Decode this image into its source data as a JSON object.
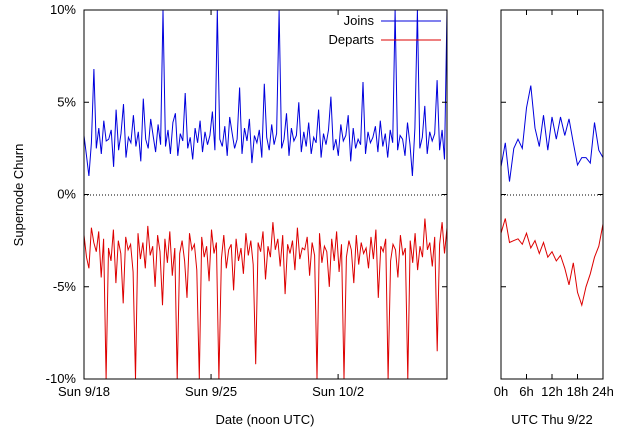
{
  "chart_data": [
    {
      "type": "line",
      "xlabel": "Date (noon UTC)",
      "ylabel": "Supernode Churn",
      "ylim": [
        -10,
        10
      ],
      "xlim": [
        0,
        20
      ],
      "x_unit": "days after Sun 9/18 noon UTC",
      "yticks": [
        {
          "value": 10,
          "label": "10%"
        },
        {
          "value": 5,
          "label": "5%"
        },
        {
          "value": 0,
          "label": "0%"
        },
        {
          "value": -5,
          "label": "-5%"
        },
        {
          "value": -10,
          "label": "-10%"
        }
      ],
      "xticks": [
        {
          "value": 0,
          "label": "Sun 9/18"
        },
        {
          "value": 7,
          "label": "Sun 9/25"
        },
        {
          "value": 14,
          "label": "Sun 10/2"
        }
      ],
      "legend_position": "top-right",
      "zero_line": "dotted",
      "series": [
        {
          "name": "Joins",
          "color": "#0000dd",
          "values": [
            3.2,
            2.1,
            1.0,
            2.8,
            6.8,
            2.5,
            3.6,
            2.2,
            4.0,
            2.9,
            3.0,
            3.5,
            1.5,
            4.6,
            2.4,
            3.3,
            4.9,
            2.0,
            3.1,
            2.8,
            4.3,
            2.6,
            3.4,
            1.8,
            5.2,
            3.0,
            2.5,
            4.1,
            3.2,
            2.3,
            3.8,
            2.7,
            10.0,
            2.6,
            3.5,
            2.2,
            3.9,
            4.4,
            2.1,
            3.3,
            2.9,
            5.5,
            2.5,
            3.1,
            1.9,
            3.6,
            2.8,
            4.0,
            2.3,
            3.4,
            2.7,
            3.2,
            4.5,
            2.4,
            10.0,
            3.0,
            2.6,
            3.7,
            2.1,
            4.2,
            3.3,
            2.5,
            3.0,
            5.8,
            2.2,
            3.6,
            2.9,
            4.1,
            1.7,
            3.2,
            2.8,
            3.5,
            2.0,
            6.0,
            3.1,
            2.4,
            3.8,
            2.7,
            3.3,
            10.0,
            2.5,
            3.0,
            4.4,
            2.1,
            3.6,
            2.9,
            3.2,
            5.0,
            2.3,
            3.4,
            2.6,
            3.9,
            2.2,
            3.1,
            2.8,
            4.6,
            2.0,
            3.3,
            2.7,
            3.5,
            5.3,
            2.4,
            3.0,
            2.1,
            3.8,
            2.9,
            3.2,
            4.3,
            1.8,
            3.6,
            2.5,
            3.0,
            2.7,
            6.1,
            2.2,
            3.4,
            2.8,
            3.1,
            3.7,
            2.3,
            4.0,
            2.6,
            3.3,
            2.0,
            3.5,
            2.8,
            10.0,
            2.4,
            3.2,
            3.0,
            2.1,
            3.9,
            2.7,
            1.0,
            3.6,
            10.0,
            2.5,
            3.1,
            4.8,
            2.2,
            3.4,
            2.9,
            3.3,
            6.2,
            2.4,
            3.5,
            1.9,
            10.0
          ]
        },
        {
          "name": "Departs",
          "color": "#dd0000",
          "values": [
            -2.2,
            -3.4,
            -4.0,
            -1.8,
            -2.6,
            -3.1,
            -2.0,
            -4.5,
            -2.4,
            -10.0,
            -2.9,
            -3.6,
            -1.9,
            -4.8,
            -2.5,
            -3.2,
            -5.9,
            -2.3,
            -3.0,
            -2.7,
            -4.2,
            -10.0,
            -2.1,
            -3.5,
            -2.6,
            -4.0,
            -1.7,
            -3.3,
            -2.8,
            -5.0,
            -2.2,
            -3.1,
            -6.0,
            -2.4,
            -3.7,
            -2.0,
            -4.4,
            -2.9,
            -10.0,
            -3.2,
            -2.5,
            -3.6,
            -5.6,
            -2.1,
            -3.0,
            -2.7,
            -4.1,
            -10.0,
            -2.3,
            -3.4,
            -2.8,
            -4.7,
            -1.9,
            -3.2,
            -2.6,
            -10.0,
            -3.5,
            -2.2,
            -4.0,
            -3.0,
            -2.7,
            -5.2,
            -2.4,
            -3.6,
            -2.9,
            -4.3,
            -2.1,
            -3.3,
            -2.5,
            -3.8,
            -9.2,
            -2.6,
            -3.1,
            -2.0,
            -4.6,
            -2.8,
            -3.4,
            -1.5,
            -3.0,
            -2.4,
            -3.9,
            -2.2,
            -5.4,
            -2.7,
            -3.2,
            -2.5,
            -4.1,
            -1.8,
            -3.5,
            -2.9,
            -3.0,
            -2.3,
            -4.4,
            -2.6,
            -3.3,
            -10.0,
            -2.1,
            -3.7,
            -2.8,
            -3.1,
            -5.0,
            -2.4,
            -3.6,
            -2.0,
            -4.2,
            -2.7,
            -10.0,
            -3.4,
            -2.5,
            -3.0,
            -4.8,
            -2.2,
            -3.8,
            -2.6,
            -3.2,
            -2.9,
            -4.0,
            -2.3,
            -3.5,
            -1.9,
            -5.6,
            -2.8,
            -3.1,
            -2.4,
            -10.0,
            -3.6,
            -2.7,
            -3.0,
            -4.5,
            -2.2,
            -3.3,
            -2.9,
            -10.0,
            -2.5,
            -3.7,
            -2.1,
            -4.1,
            -2.8,
            -3.4,
            -1.3,
            -3.0,
            -2.6,
            -3.9,
            -2.3,
            -8.5,
            -2.7,
            -1.5,
            -3.2,
            -1.8
          ]
        }
      ]
    },
    {
      "type": "line",
      "xlabel": "UTC Thu 9/22",
      "ylim": [
        -10,
        10
      ],
      "xlim": [
        0,
        24
      ],
      "x_unit": "hours UTC",
      "xticks": [
        {
          "value": 0,
          "label": "0h"
        },
        {
          "value": 6,
          "label": "6h"
        },
        {
          "value": 12,
          "label": "12h"
        },
        {
          "value": 18,
          "label": "18h"
        },
        {
          "value": 24,
          "label": "24h"
        }
      ],
      "zero_line": "dotted",
      "series": [
        {
          "color": "#0000dd",
          "x": [
            0,
            1,
            2,
            3,
            4,
            5,
            6,
            7,
            8,
            9,
            10,
            11,
            12,
            13,
            14,
            15,
            16,
            17,
            18,
            19,
            20,
            21,
            22,
            23,
            24
          ],
          "values": [
            1.5,
            2.8,
            0.7,
            2.5,
            3.0,
            2.5,
            4.7,
            5.9,
            3.6,
            2.6,
            4.3,
            2.4,
            4.2,
            3.0,
            4.2,
            3.2,
            4.1,
            2.8,
            1.6,
            2.0,
            2.0,
            1.7,
            3.9,
            2.4,
            2.0
          ]
        },
        {
          "color": "#dd0000",
          "x": [
            0,
            1,
            2,
            3,
            4,
            5,
            6,
            7,
            8,
            9,
            10,
            11,
            12,
            13,
            14,
            15,
            16,
            17,
            18,
            19,
            20,
            21,
            22,
            23,
            24
          ],
          "values": [
            -2.1,
            -1.3,
            -2.6,
            -2.5,
            -2.4,
            -2.7,
            -2.1,
            -2.9,
            -2.5,
            -3.2,
            -2.6,
            -3.4,
            -3.1,
            -3.6,
            -3.3,
            -4.0,
            -4.9,
            -3.7,
            -5.3,
            -6.0,
            -5.0,
            -4.3,
            -3.4,
            -2.8,
            -1.6
          ]
        }
      ]
    }
  ]
}
